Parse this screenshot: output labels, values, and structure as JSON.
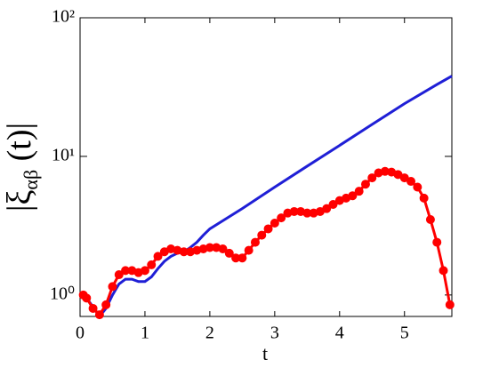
{
  "chart_data": {
    "type": "line",
    "xlabel": "t",
    "ylabel": {
      "symbol": "|ξ",
      "subscript": "αβ",
      "rest": " (t)|"
    },
    "log_y": true,
    "xlim": [
      0,
      5.73
    ],
    "xticks": [
      0,
      1,
      2,
      3,
      4,
      5
    ],
    "ylim": [
      0.7,
      100
    ],
    "yticks": [
      {
        "value": 1,
        "label": "10⁰"
      },
      {
        "value": 10,
        "label": "10¹"
      },
      {
        "value": 100,
        "label": "10²"
      }
    ],
    "series": [
      {
        "name": "blue",
        "color": "#1f1fd6",
        "markers": false,
        "x": [
          0,
          0.1,
          0.2,
          0.3,
          0.4,
          0.5,
          0.6,
          0.7,
          0.8,
          0.9,
          1.0,
          1.1,
          1.2,
          1.3,
          1.4,
          1.5,
          1.6,
          1.7,
          1.8,
          1.9,
          2.0,
          2.5,
          3.0,
          3.5,
          4.0,
          4.5,
          5.0,
          5.5,
          5.73
        ],
        "values": [
          1.0,
          0.95,
          0.82,
          0.7,
          0.8,
          1.0,
          1.2,
          1.3,
          1.3,
          1.25,
          1.25,
          1.35,
          1.55,
          1.75,
          1.9,
          2.0,
          2.05,
          2.2,
          2.4,
          2.7,
          3.0,
          4.2,
          6.0,
          8.5,
          12,
          17,
          24,
          33,
          38
        ]
      },
      {
        "name": "red",
        "color": "#ff0000",
        "markers": true,
        "x": [
          0.05,
          0.1,
          0.2,
          0.3,
          0.4,
          0.5,
          0.6,
          0.7,
          0.8,
          0.9,
          1.0,
          1.1,
          1.2,
          1.3,
          1.4,
          1.5,
          1.6,
          1.7,
          1.8,
          1.9,
          2.0,
          2.1,
          2.2,
          2.3,
          2.4,
          2.5,
          2.6,
          2.7,
          2.8,
          2.9,
          3.0,
          3.1,
          3.2,
          3.3,
          3.4,
          3.5,
          3.6,
          3.7,
          3.8,
          3.9,
          4.0,
          4.1,
          4.2,
          4.3,
          4.4,
          4.5,
          4.6,
          4.7,
          4.8,
          4.9,
          5.0,
          5.1,
          5.2,
          5.3,
          5.4,
          5.5,
          5.6,
          5.7
        ],
        "values": [
          1.0,
          0.95,
          0.8,
          0.72,
          0.85,
          1.15,
          1.4,
          1.5,
          1.5,
          1.45,
          1.5,
          1.65,
          1.9,
          2.05,
          2.15,
          2.1,
          2.05,
          2.05,
          2.1,
          2.15,
          2.2,
          2.2,
          2.15,
          2.0,
          1.85,
          1.85,
          2.1,
          2.4,
          2.7,
          3.0,
          3.3,
          3.6,
          3.9,
          4.0,
          4.0,
          3.9,
          3.9,
          4.0,
          4.2,
          4.5,
          4.8,
          5.0,
          5.2,
          5.6,
          6.3,
          7.0,
          7.6,
          7.8,
          7.7,
          7.4,
          7.0,
          6.6,
          6.0,
          5.0,
          3.5,
          2.4,
          1.5,
          0.85
        ]
      }
    ]
  }
}
